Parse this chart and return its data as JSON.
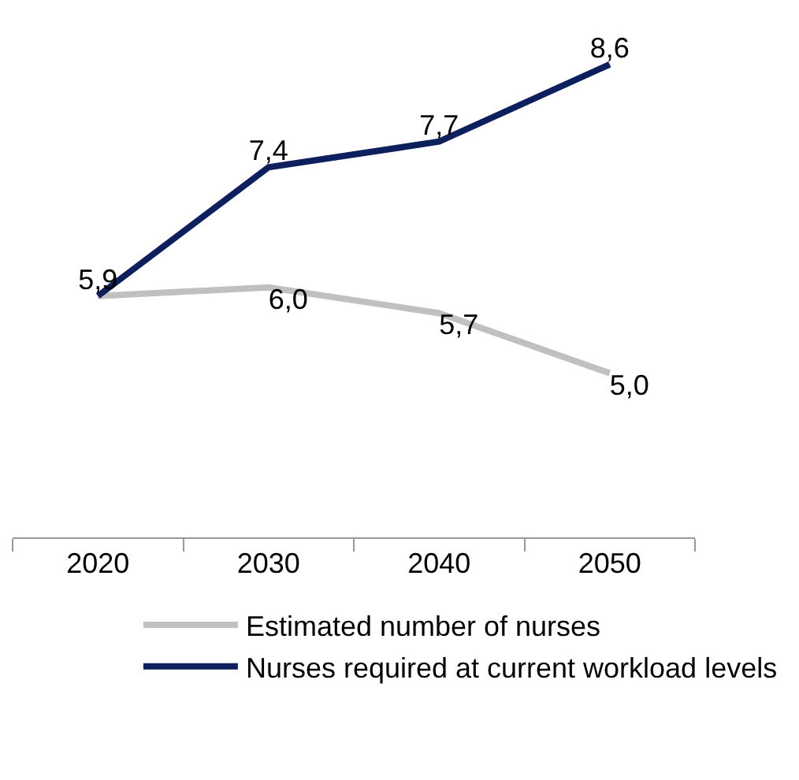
{
  "chart_data": {
    "type": "line",
    "categories": [
      "2020",
      "2030",
      "2040",
      "2050"
    ],
    "series": [
      {
        "name": "Estimated number of nurses",
        "color": "#c0c0c0",
        "values": [
          5.9,
          6.0,
          5.7,
          5.0
        ],
        "value_labels": [
          null,
          "6,0",
          "5,7",
          "5,0"
        ]
      },
      {
        "name": "Nurses required at current workload levels",
        "color": "#0d1f5c",
        "values": [
          5.9,
          7.4,
          7.7,
          8.6
        ],
        "value_labels": [
          "5,9",
          "7,4",
          "7,7",
          "8,6"
        ]
      }
    ],
    "tick_labels": "x",
    "grid": false,
    "legend": "bottom",
    "marker": "none",
    "line_style": "solid"
  }
}
